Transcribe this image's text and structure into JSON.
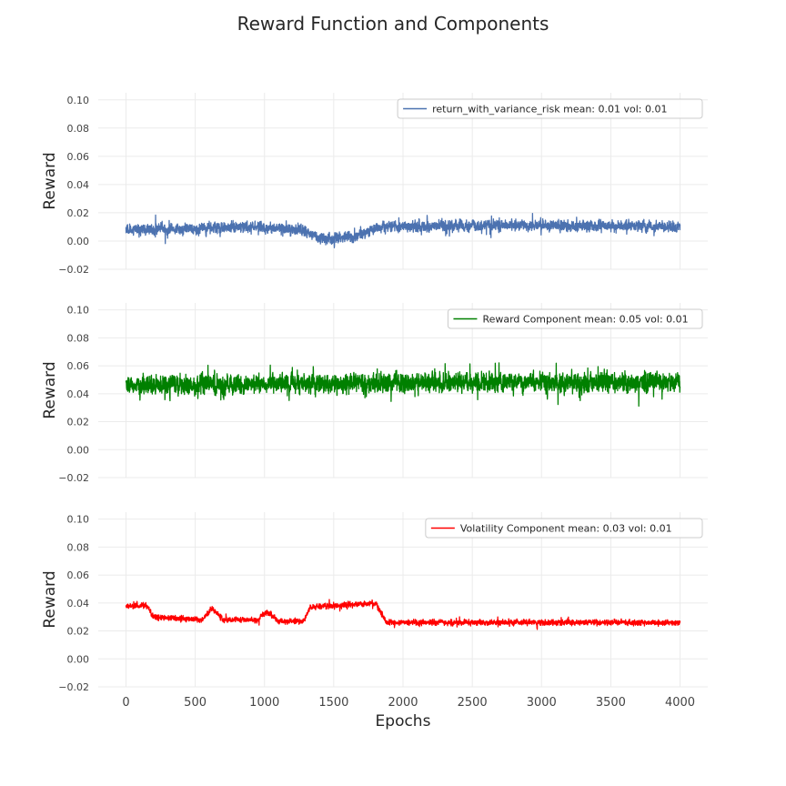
{
  "figure_title": "Reward Function and Components",
  "colors": {
    "grid": "#ebebeb",
    "axes_text": "#444444",
    "title_text": "#262626",
    "legend_border": "#cccccc"
  },
  "chart_data": [
    {
      "type": "line",
      "ylabel": "Reward",
      "xlabel": "",
      "xlim": [
        -200,
        4200
      ],
      "ylim": [
        -0.02,
        0.105
      ],
      "yticks": [
        "0.10",
        "0.08",
        "0.06",
        "0.04",
        "0.02",
        "0.00",
        "−0.02"
      ],
      "ytick_values": [
        0.1,
        0.08,
        0.06,
        0.04,
        0.02,
        0.0,
        -0.02
      ],
      "xticks_visible": false,
      "legend_position": "top-right",
      "series": [
        {
          "name": "return_with_variance_risk mean: 0.01 vol: 0.01",
          "color": "#4c72b0",
          "x_start": 0,
          "x_end": 4000,
          "level_knots": [
            [
              0,
              0.008
            ],
            [
              400,
              0.009
            ],
            [
              900,
              0.01
            ],
            [
              1250,
              0.008
            ],
            [
              1400,
              0.002
            ],
            [
              1650,
              0.003
            ],
            [
              1850,
              0.01
            ],
            [
              2500,
              0.011
            ],
            [
              3000,
              0.011
            ],
            [
              4000,
              0.01
            ]
          ],
          "noise_amplitude": 0.008
        }
      ]
    },
    {
      "type": "line",
      "ylabel": "Reward",
      "xlabel": "",
      "xlim": [
        -200,
        4200
      ],
      "ylim": [
        -0.02,
        0.105
      ],
      "yticks": [
        "0.10",
        "0.08",
        "0.06",
        "0.04",
        "0.02",
        "0.00",
        "−0.02"
      ],
      "ytick_values": [
        0.1,
        0.08,
        0.06,
        0.04,
        0.02,
        0.0,
        -0.02
      ],
      "xticks_visible": false,
      "legend_position": "top-right",
      "series": [
        {
          "name": "Reward Component mean: 0.05 vol: 0.01",
          "color": "#008000",
          "x_start": 0,
          "x_end": 4000,
          "level_knots": [
            [
              0,
              0.046
            ],
            [
              2000,
              0.048
            ],
            [
              4000,
              0.048
            ]
          ],
          "noise_amplitude": 0.014
        }
      ]
    },
    {
      "type": "line",
      "ylabel": "Reward",
      "xlabel": "Epochs",
      "xlim": [
        -200,
        4200
      ],
      "ylim": [
        -0.02,
        0.105
      ],
      "yticks": [
        "0.10",
        "0.08",
        "0.06",
        "0.04",
        "0.02",
        "0.00",
        "−0.02"
      ],
      "ytick_values": [
        0.1,
        0.08,
        0.06,
        0.04,
        0.02,
        0.0,
        -0.02
      ],
      "xticks": [
        "0",
        "500",
        "1000",
        "1500",
        "2000",
        "2500",
        "3000",
        "3500",
        "4000"
      ],
      "xtick_values": [
        0,
        500,
        1000,
        1500,
        2000,
        2500,
        3000,
        3500,
        4000
      ],
      "xticks_visible": true,
      "legend_position": "top-right",
      "series": [
        {
          "name": "Volatility Component mean: 0.03 vol: 0.01",
          "color": "#ff0000",
          "x_start": 0,
          "x_end": 4000,
          "level_knots": [
            [
              0,
              0.038
            ],
            [
              150,
              0.038
            ],
            [
              200,
              0.03
            ],
            [
              550,
              0.028
            ],
            [
              620,
              0.036
            ],
            [
              700,
              0.028
            ],
            [
              950,
              0.028
            ],
            [
              1020,
              0.034
            ],
            [
              1100,
              0.027
            ],
            [
              1280,
              0.027
            ],
            [
              1330,
              0.037
            ],
            [
              1800,
              0.04
            ],
            [
              1880,
              0.026
            ],
            [
              4000,
              0.026
            ]
          ],
          "noise_amplitude": 0.004
        }
      ]
    }
  ]
}
